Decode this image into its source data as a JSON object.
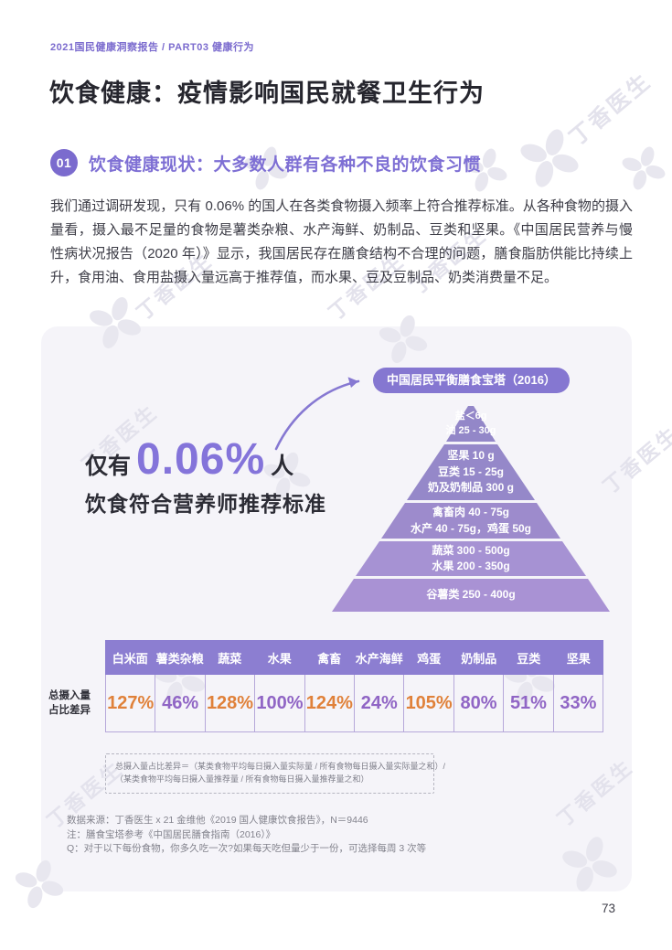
{
  "breadcrumb": "2021国民健康洞察报告 / PART03 健康行为",
  "page_title": "饮食健康：疫情影响国民就餐卫生行为",
  "section": {
    "badge": "01",
    "heading": "饮食健康现状：大多数人群有各种不良的饮食习惯"
  },
  "intro_paragraph": "我们通过调研发现，只有 0.06% 的国人在各类食物摄入频率上符合推荐标准。从各种食物的摄入量看，摄入最不足量的食物是薯类杂粮、水产海鲜、奶制品、豆类和坚果。《中国居民营养与慢性病状况报告（2020 年）》显示，我国居民存在膳食结构不合理的问题，膳食脂肪供能比持续上升，食用油、食用盐摄入量远高于推荐值，而水果、豆及豆制品、奶类消费量不足。",
  "stat": {
    "prefix": "仅有",
    "value": "0.06%",
    "suffix": "人",
    "caption": "饮食符合营养师推荐标准"
  },
  "pyramid": {
    "label": "中国居民平衡膳食宝塔（2016）",
    "tiers": [
      {
        "lines": [
          "盐＜6g",
          "油 25 - 30g"
        ],
        "color": "#9387c8"
      },
      {
        "lines": [
          "坚果 10 g",
          "豆类 15 - 25g",
          "奶及奶制品 300 g"
        ],
        "color": "#9588c9"
      },
      {
        "lines": [
          "禽畜肉 40 - 75g",
          "水产 40 - 75g，鸡蛋 50g"
        ],
        "color": "#9d8bcc"
      },
      {
        "lines": [
          "蔬菜 300 - 500g",
          "水果 200 - 350g"
        ],
        "color": "#a692d3"
      },
      {
        "lines": [
          "谷薯类 250 - 400g"
        ],
        "color": "#a992d4"
      }
    ]
  },
  "chart_data": {
    "type": "table",
    "title": "总摄入量占比差异",
    "categories": [
      "白米面",
      "薯类杂粮",
      "蔬菜",
      "水果",
      "禽畜",
      "水产海鲜",
      "鸡蛋",
      "奶制品",
      "豆类",
      "坚果"
    ],
    "values": [
      127,
      46,
      128,
      100,
      124,
      24,
      105,
      80,
      51,
      33
    ],
    "value_labels": [
      "127%",
      "46%",
      "128%",
      "100%",
      "124%",
      "24%",
      "105%",
      "80%",
      "51%",
      "33%"
    ],
    "over_color": "#e0813a",
    "under_color": "#9065c5"
  },
  "table": {
    "row_label_line1": "总摄入量",
    "row_label_line2": "占比差异"
  },
  "formula": {
    "line1": "总摄入量占比差异＝（某类食物平均每日摄入量实际量 / 所有食物每日摄入量实际量之和）/",
    "line2": "（某类食物平均每日摄入量推荐量 / 所有食物每日摄入量推荐量之和）"
  },
  "footnotes": [
    "数据来源：丁香医生 x 21 金维他《2019 国人健康饮食报告》，N＝9446",
    "注：膳食宝塔参考《中国居民膳食指南（2016）》",
    "Q：对于以下每份食物，你多久吃一次?如果每天吃但量少于一份，可选择每周 3 次等"
  ],
  "watermark": {
    "text": "丁香医生"
  },
  "page_number": "73",
  "colors": {
    "brand_purple": "#7b6bce",
    "pill_purple": "#8577d1",
    "table_header_purple": "#8c7ed1",
    "panel_bg": "#f5f4f9"
  }
}
